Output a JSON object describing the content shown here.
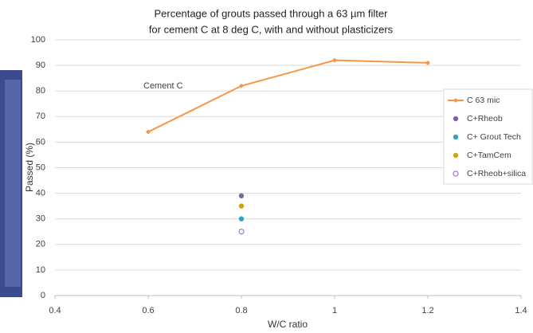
{
  "chart_data": {
    "type": "line",
    "title": [
      "Percentage of grouts passed through a 63 µm filter",
      "for cement C at 8 deg C, with and without plasticizers"
    ],
    "x_label": "W/C ratio",
    "y_label": "Passed (%)",
    "annotation": "Cement C",
    "xlim": [
      0.4,
      1.4
    ],
    "xticks": [
      0.4,
      0.6,
      0.8,
      1,
      1.2,
      1.4
    ],
    "ylim": [
      0,
      100
    ],
    "yticks": [
      0,
      10,
      20,
      30,
      40,
      50,
      60,
      70,
      80,
      90,
      100
    ],
    "grid": true,
    "legend": "right",
    "series": [
      {
        "name": "C 63 mic",
        "color": "#f79646",
        "mode": "line",
        "x": [
          0.6,
          0.8,
          1,
          1.2
        ],
        "values": [
          64,
          82,
          92,
          91
        ]
      },
      {
        "name": "C+Rheob",
        "color": "#8064a2",
        "mode": "marker",
        "x": [
          0.8
        ],
        "values": [
          39
        ]
      },
      {
        "name": "C+ Grout Tech",
        "color": "#31a0c8",
        "mode": "marker",
        "x": [
          0.8
        ],
        "values": [
          30
        ]
      },
      {
        "name": "C+TamCem",
        "color": "#d4a20c",
        "mode": "marker",
        "x": [
          0.8
        ],
        "values": [
          35
        ]
      },
      {
        "name": "C+Rheob+silica",
        "color": "#a070d0",
        "mode": "hollow",
        "x": [
          0.8
        ],
        "values": [
          25
        ]
      }
    ]
  }
}
